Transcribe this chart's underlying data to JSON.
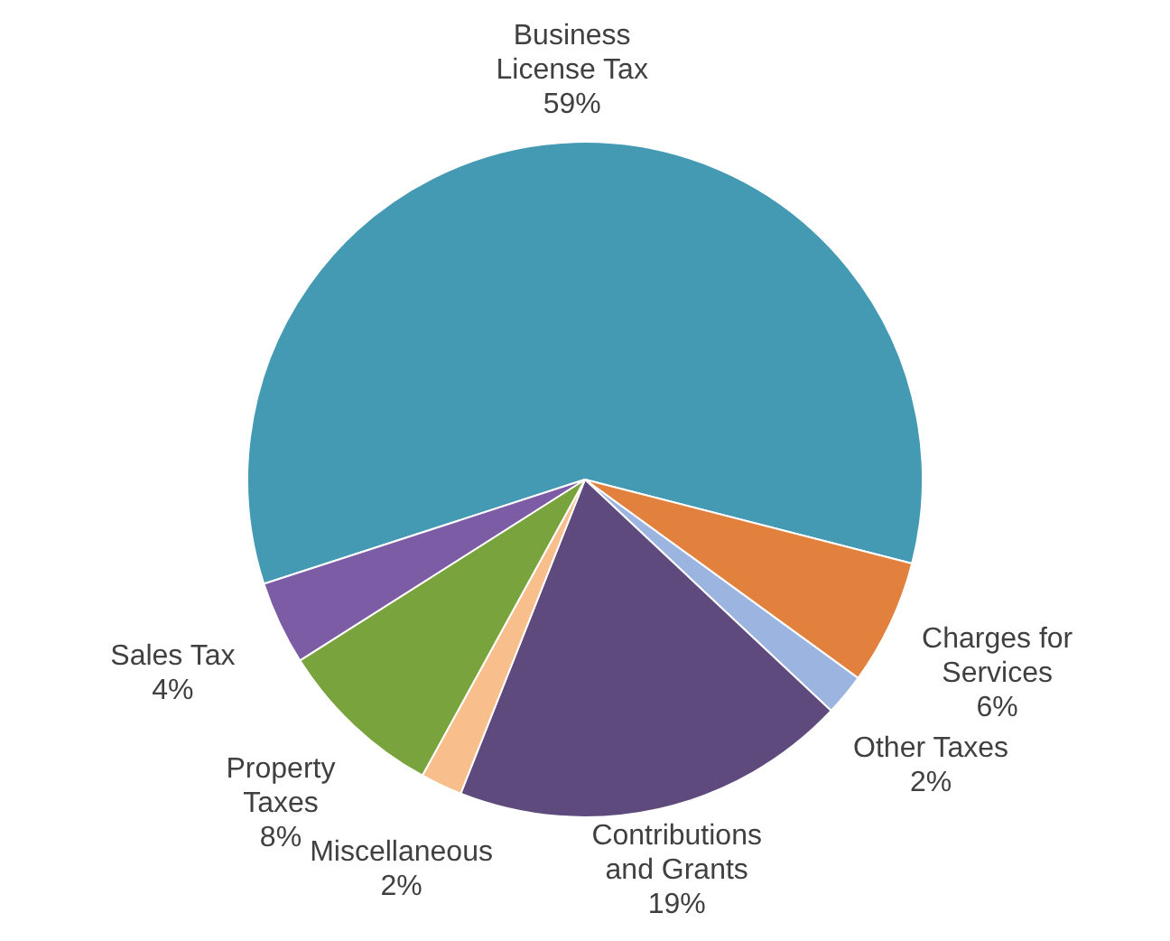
{
  "chart_data": {
    "type": "pie",
    "categories": [
      "Business License Tax",
      "Charges for Services",
      "Other Taxes",
      "Contributions and Grants",
      "Miscellaneous",
      "Property Taxes",
      "Sales Tax"
    ],
    "values": [
      59,
      6,
      2,
      19,
      2,
      8,
      4
    ],
    "colors": [
      "#4499b3",
      "#e2813d",
      "#9cb4e0",
      "#5f4a7e",
      "#f8bf8d",
      "#79a33d",
      "#7b5ca5"
    ],
    "value_labels": [
      "59%",
      "6%",
      "2%",
      "19%",
      "2%",
      "8%",
      "4%"
    ]
  }
}
